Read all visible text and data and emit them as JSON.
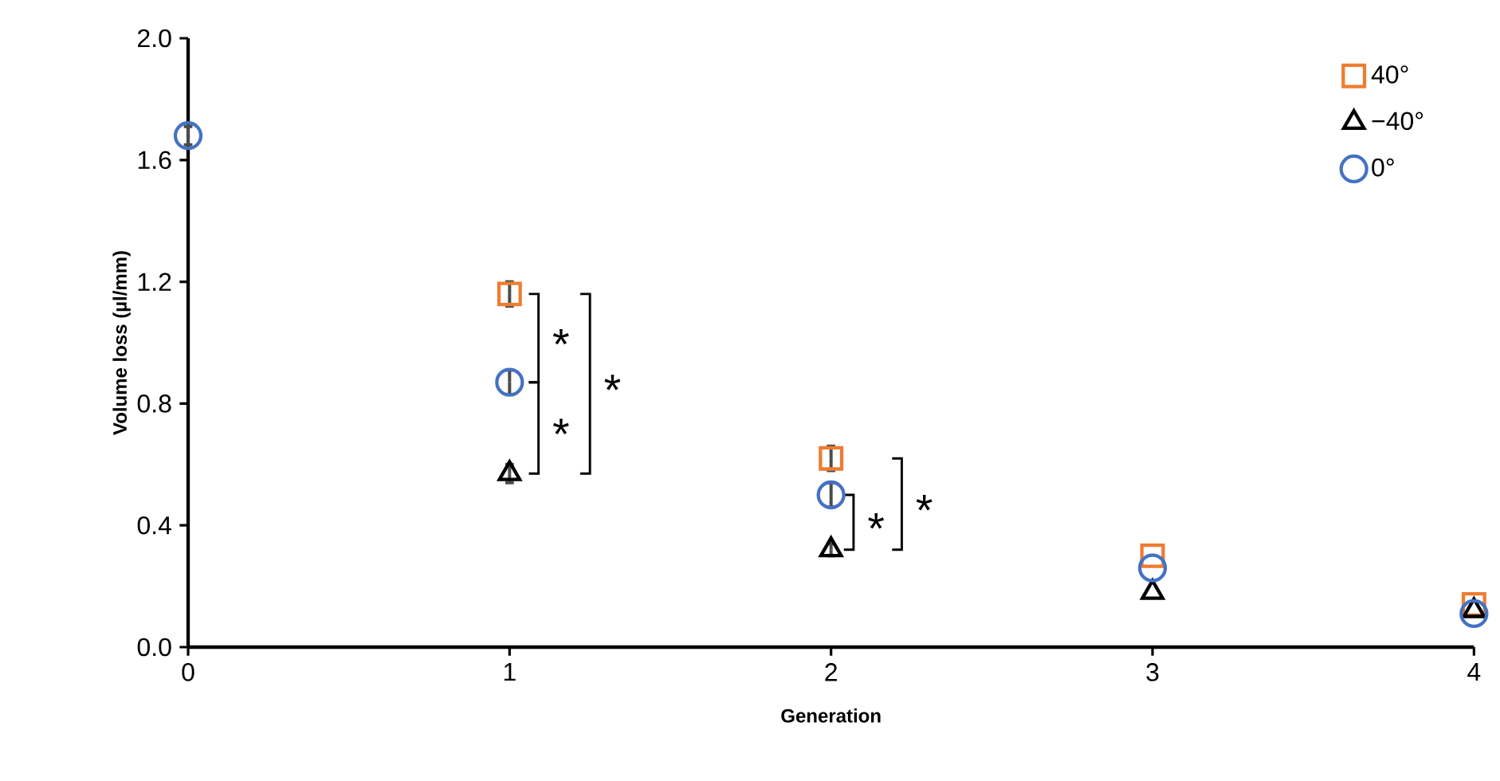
{
  "chart_data": {
    "type": "scatter",
    "xlabel": "Generation",
    "ylabel": "Volume loss (µl/mm)",
    "x": [
      0,
      1,
      2,
      3,
      4
    ],
    "xlim": [
      0,
      4
    ],
    "xticks": [
      0,
      1,
      2,
      3,
      4
    ],
    "ylim": [
      0,
      2
    ],
    "yticks": [
      {
        "value": 0,
        "label": "0.0"
      },
      {
        "value": 0.4,
        "label": "0.4"
      },
      {
        "value": 0.8,
        "label": "0.8"
      },
      {
        "value": 1.2,
        "label": "1.2"
      },
      {
        "value": 1.6,
        "label": "1.6"
      },
      {
        "value": 2.0,
        "label": "2.0"
      }
    ],
    "series": [
      {
        "name": "40°",
        "color": "#ed7d31",
        "marker": "square",
        "values": [
          null,
          1.16,
          0.62,
          0.3,
          0.14
        ],
        "errors": [
          null,
          0.04,
          0.04,
          null,
          null
        ]
      },
      {
        "name": "−40°",
        "color": "#000000",
        "marker": "triangle",
        "values": [
          null,
          0.57,
          0.32,
          0.18,
          0.12
        ],
        "errors": [
          null,
          0.03,
          0.02,
          null,
          null
        ]
      },
      {
        "name": "0°",
        "color": "#4472c4",
        "marker": "circle",
        "values": [
          1.68,
          0.87,
          0.5,
          0.26,
          0.11
        ],
        "errors": [
          0.03,
          0.04,
          0.04,
          null,
          null
        ]
      }
    ],
    "annotations": [
      "*",
      "*",
      "*",
      "*",
      "*"
    ],
    "legend": "top right",
    "grid": false
  }
}
